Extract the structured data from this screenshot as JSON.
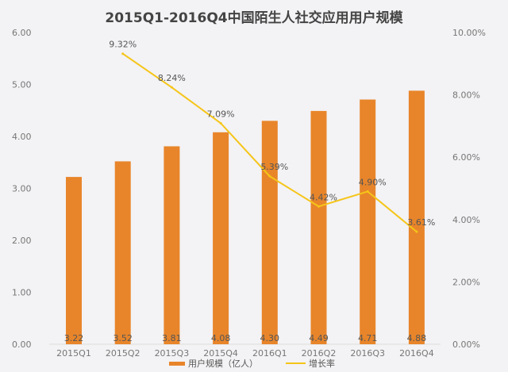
{
  "chart_data": {
    "type": "bar",
    "title": "2015Q1-2016Q4中国陌生人社交应用用户规模",
    "categories": [
      "2015Q1",
      "2015Q2",
      "2015Q3",
      "2015Q4",
      "2016Q1",
      "2016Q2",
      "2016Q3",
      "2016Q4"
    ],
    "series": [
      {
        "name": "用户规模（亿人）",
        "type": "bar",
        "axis": "left",
        "color": "#e8852a",
        "values": [
          3.22,
          3.52,
          3.81,
          4.08,
          4.3,
          4.49,
          4.71,
          4.88
        ],
        "labels": [
          "3.22",
          "3.52",
          "3.81",
          "4.08",
          "4.30",
          "4.49",
          "4.71",
          "4.88"
        ]
      },
      {
        "name": "增长率",
        "type": "line",
        "axis": "right",
        "color": "#f5c518",
        "values": [
          null,
          9.32,
          8.24,
          7.09,
          5.39,
          4.42,
          4.9,
          3.61
        ],
        "labels": [
          "",
          "9.32%",
          "8.24%",
          "7.09%",
          "5.39%",
          "4.42%",
          "4.90%",
          "3.61%"
        ]
      }
    ],
    "y_left": {
      "range": [
        0,
        6
      ],
      "ticks": [
        "0.00",
        "1.00",
        "2.00",
        "3.00",
        "4.00",
        "5.00",
        "6.00"
      ]
    },
    "y_right": {
      "range": [
        0,
        10
      ],
      "ticks": [
        "0.00%",
        "2.00%",
        "4.00%",
        "6.00%",
        "8.00%",
        "10.00%"
      ]
    },
    "legend": {
      "placement": "bottom",
      "entries": [
        "用户规模（亿人）",
        "增长率"
      ]
    },
    "grid": false
  }
}
